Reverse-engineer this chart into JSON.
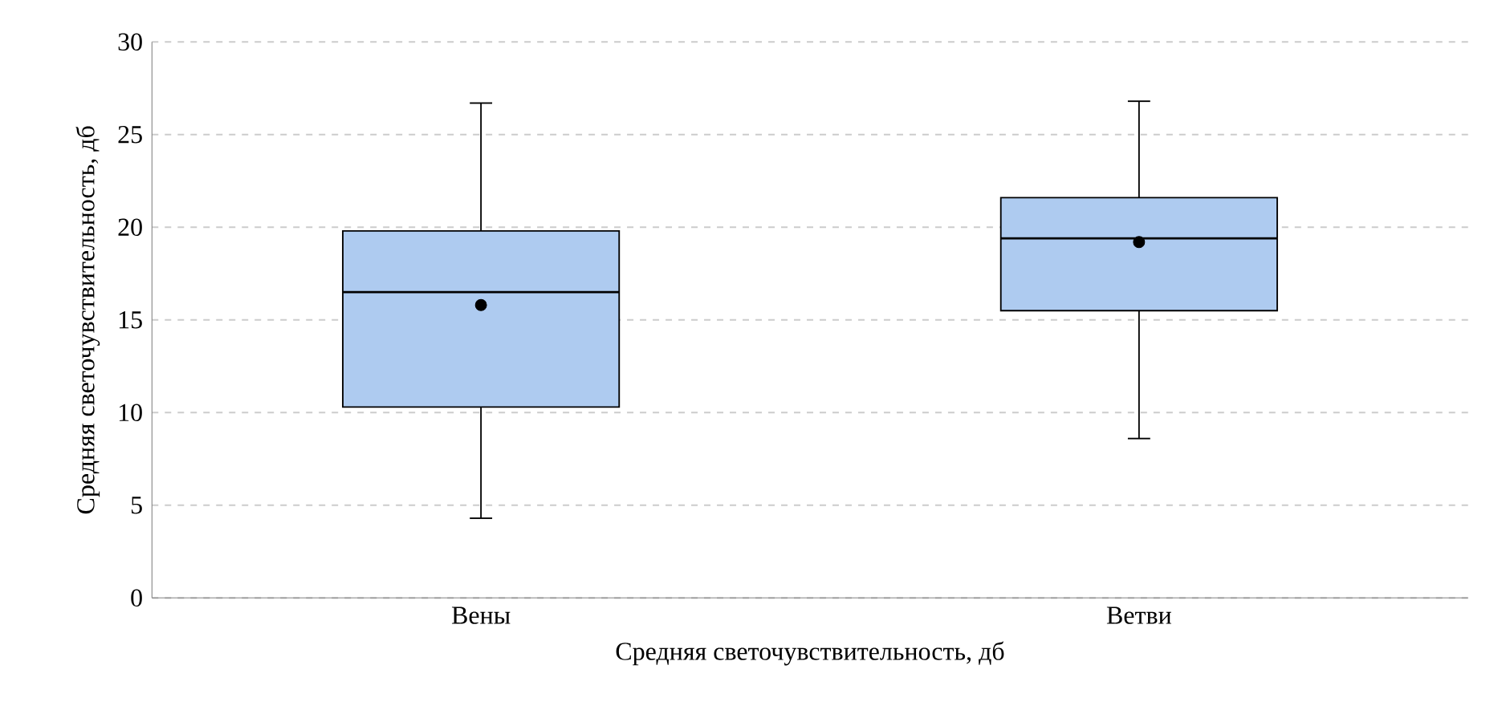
{
  "chart_data": {
    "type": "box",
    "xlabel": "Средняя светочувствительность, дб",
    "ylabel": "Средняя светочувствительность, дб",
    "categories": [
      "Вены",
      "Ветви"
    ],
    "boxes": [
      {
        "low": 4.3,
        "q1": 10.3,
        "median": 16.5,
        "q3": 19.8,
        "high": 26.7,
        "mean": 15.8
      },
      {
        "low": 8.6,
        "q1": 15.5,
        "median": 19.4,
        "q3": 21.6,
        "high": 26.8,
        "mean": 19.2
      }
    ],
    "color": "#aecbf0",
    "ylim": [
      0,
      30
    ],
    "yticks": [
      0,
      5,
      10,
      15,
      20,
      25,
      30
    ],
    "grid": "y",
    "marker": "circle"
  }
}
